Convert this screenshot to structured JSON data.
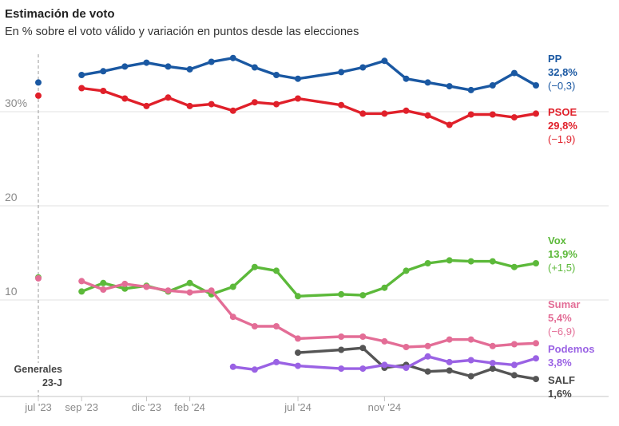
{
  "chart_data": {
    "type": "line",
    "title": "Estimación de voto",
    "subtitle": "En % sobre el voto válido y variación en puntos desde las elecciones",
    "xlabel": "",
    "ylabel": "",
    "xlim": [
      "2023-07",
      "2025-06"
    ],
    "ylim": [
      0,
      36
    ],
    "grid": true,
    "legend": "right",
    "x_ticks": [
      {
        "value": "2023-07",
        "label": "jul '23"
      },
      {
        "value": "2023-09",
        "label": "sep '23"
      },
      {
        "value": "2023-12",
        "label": "dic '23"
      },
      {
        "value": "2024-02",
        "label": "feb '24"
      },
      {
        "value": "2024-07",
        "label": "jul '24"
      },
      {
        "value": "2024-11",
        "label": "nov '24"
      }
    ],
    "y_ticks": [
      {
        "value": 30,
        "label": "30%"
      },
      {
        "value": 20,
        "label": "20"
      },
      {
        "value": 10,
        "label": "10"
      }
    ],
    "annotation": {
      "x": "2023-07",
      "lines": [
        "Generales",
        "23-J"
      ]
    },
    "x": [
      "2023-09",
      "2023-10",
      "2023-11",
      "2023-12",
      "2024-01",
      "2024-02",
      "2024-03",
      "2024-04",
      "2024-05",
      "2024-06",
      "2024-07",
      "2024-08",
      "2024-09",
      "2024-10",
      "2024-11",
      "2024-12",
      "2025-01",
      "2025-02",
      "2025-03",
      "2025-04",
      "2025-05",
      "2025-06"
    ],
    "series": [
      {
        "name": "PP",
        "color": "#1a58a2",
        "election_value": 33.1,
        "values": [
          33.9,
          34.3,
          34.8,
          35.2,
          34.8,
          34.5,
          35.3,
          35.7,
          34.7,
          33.9,
          33.5,
          null,
          34.2,
          34.7,
          35.4,
          33.5,
          33.1,
          32.7,
          32.3,
          32.8,
          34.1,
          32.8
        ],
        "last_value": "32,8%",
        "change": "(−0,3)"
      },
      {
        "name": "PSOE",
        "color": "#e0202a",
        "election_value": 31.7,
        "values": [
          32.5,
          32.2,
          31.4,
          30.6,
          31.5,
          30.6,
          30.8,
          30.1,
          31.0,
          30.8,
          31.4,
          null,
          30.7,
          29.8,
          29.8,
          30.1,
          29.6,
          28.6,
          29.7,
          29.7,
          29.4,
          29.8
        ],
        "last_value": "29,8%",
        "change": "(−1,9)"
      },
      {
        "name": "Vox",
        "color": "#5cb93a",
        "election_value": 12.4,
        "values": [
          10.9,
          11.8,
          11.2,
          11.5,
          10.9,
          11.8,
          10.6,
          11.4,
          13.5,
          13.1,
          10.4,
          null,
          10.6,
          10.5,
          11.3,
          13.1,
          13.9,
          14.2,
          14.1,
          14.1,
          13.5,
          13.9
        ],
        "last_value": "13,9%",
        "change": "(+1,5)"
      },
      {
        "name": "Sumar",
        "color": "#e36d96",
        "election_value": 12.3,
        "values": [
          12.0,
          11.1,
          11.7,
          11.4,
          11.0,
          10.8,
          11.0,
          8.2,
          7.2,
          7.2,
          5.9,
          null,
          6.1,
          6.1,
          5.6,
          5.0,
          5.1,
          5.8,
          5.8,
          5.1,
          5.3,
          5.4
        ],
        "last_value": "5,4%",
        "change": "(−6,9)"
      },
      {
        "name": "Podemos",
        "color": "#9a62e4",
        "election_value": null,
        "values": [
          null,
          null,
          null,
          null,
          null,
          null,
          null,
          2.9,
          2.6,
          3.4,
          3.0,
          null,
          2.7,
          2.7,
          3.1,
          2.8,
          4.0,
          3.4,
          3.6,
          3.3,
          3.1,
          3.8
        ],
        "last_value": "3,8%"
      },
      {
        "name": "SALF",
        "color": "#555555",
        "election_value": null,
        "values": [
          null,
          null,
          null,
          null,
          null,
          null,
          null,
          null,
          null,
          null,
          4.4,
          null,
          4.7,
          4.9,
          2.8,
          3.1,
          2.4,
          2.5,
          1.9,
          2.7,
          2.0,
          1.6
        ],
        "last_value": "1,6%"
      }
    ]
  }
}
